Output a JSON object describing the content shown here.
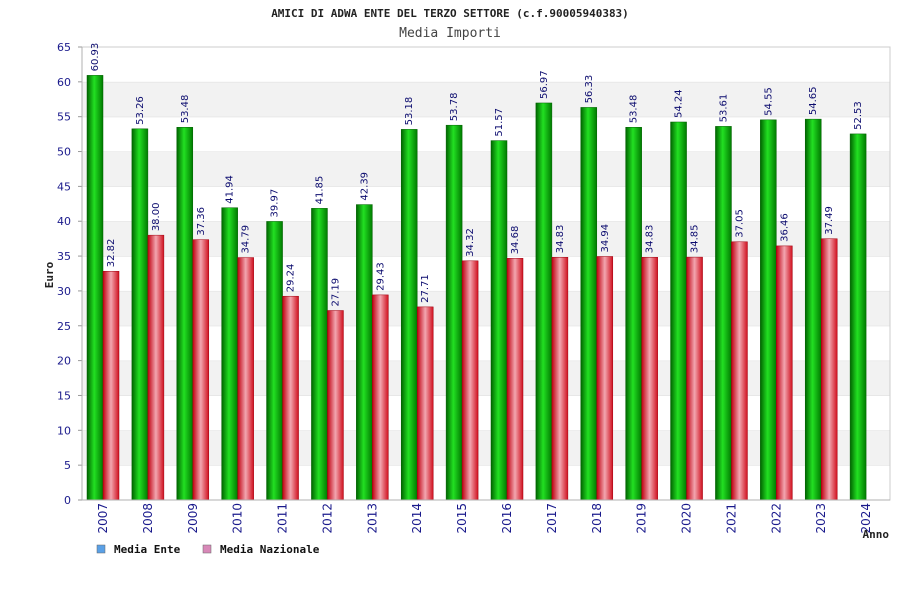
{
  "chart_data": {
    "type": "bar",
    "title": "AMICI DI ADWA ENTE DEL TERZO SETTORE (c.f.90005940383)",
    "subtitle": "Media Importi",
    "ylabel": "Euro",
    "xlabel": "Anno",
    "ylim": [
      0,
      65
    ],
    "yticks": [
      0,
      5,
      10,
      15,
      20,
      25,
      30,
      35,
      40,
      45,
      50,
      55,
      60,
      65
    ],
    "grid": "horizontal, alternating bands",
    "legend_position": "bottom-left",
    "categories": [
      "2007",
      "2008",
      "2009",
      "2010",
      "2011",
      "2012",
      "2013",
      "2014",
      "2015",
      "2016",
      "2017",
      "2018",
      "2019",
      "2020",
      "2021",
      "2022",
      "2023",
      "2024"
    ],
    "series": [
      {
        "name": "Media Ente",
        "color": "#0a9f0a",
        "legend_color": "#5aa0e6",
        "values": [
          60.93,
          53.26,
          53.48,
          41.94,
          39.97,
          41.85,
          42.39,
          53.18,
          53.78,
          51.57,
          56.97,
          56.33,
          53.48,
          54.24,
          53.61,
          54.55,
          54.65,
          52.53
        ],
        "labels": [
          "60.93",
          "53.26",
          "53.48",
          "41.94",
          "39.97",
          "41.85",
          "42.39",
          "53.18",
          "53.78",
          "51.57",
          "56.97",
          "56.33",
          "53.48",
          "54.24",
          "53.61",
          "54.55",
          "54.65",
          "52.53"
        ]
      },
      {
        "name": "Media Nazionale",
        "color": "#e0101a",
        "legend_color": "#d888b8",
        "values": [
          32.82,
          38.0,
          37.36,
          34.79,
          29.24,
          27.19,
          29.43,
          27.71,
          34.32,
          34.68,
          34.83,
          34.94,
          34.83,
          34.85,
          37.05,
          36.46,
          37.49,
          null
        ],
        "labels": [
          "32.82",
          "38.00",
          "37.36",
          "34.79",
          "29.24",
          "27.19",
          "29.43",
          "27.71",
          "34.32",
          "34.68",
          "34.83",
          "34.94",
          "34.83",
          "34.85",
          "37.05",
          "36.46",
          "37.49",
          ""
        ]
      }
    ]
  }
}
